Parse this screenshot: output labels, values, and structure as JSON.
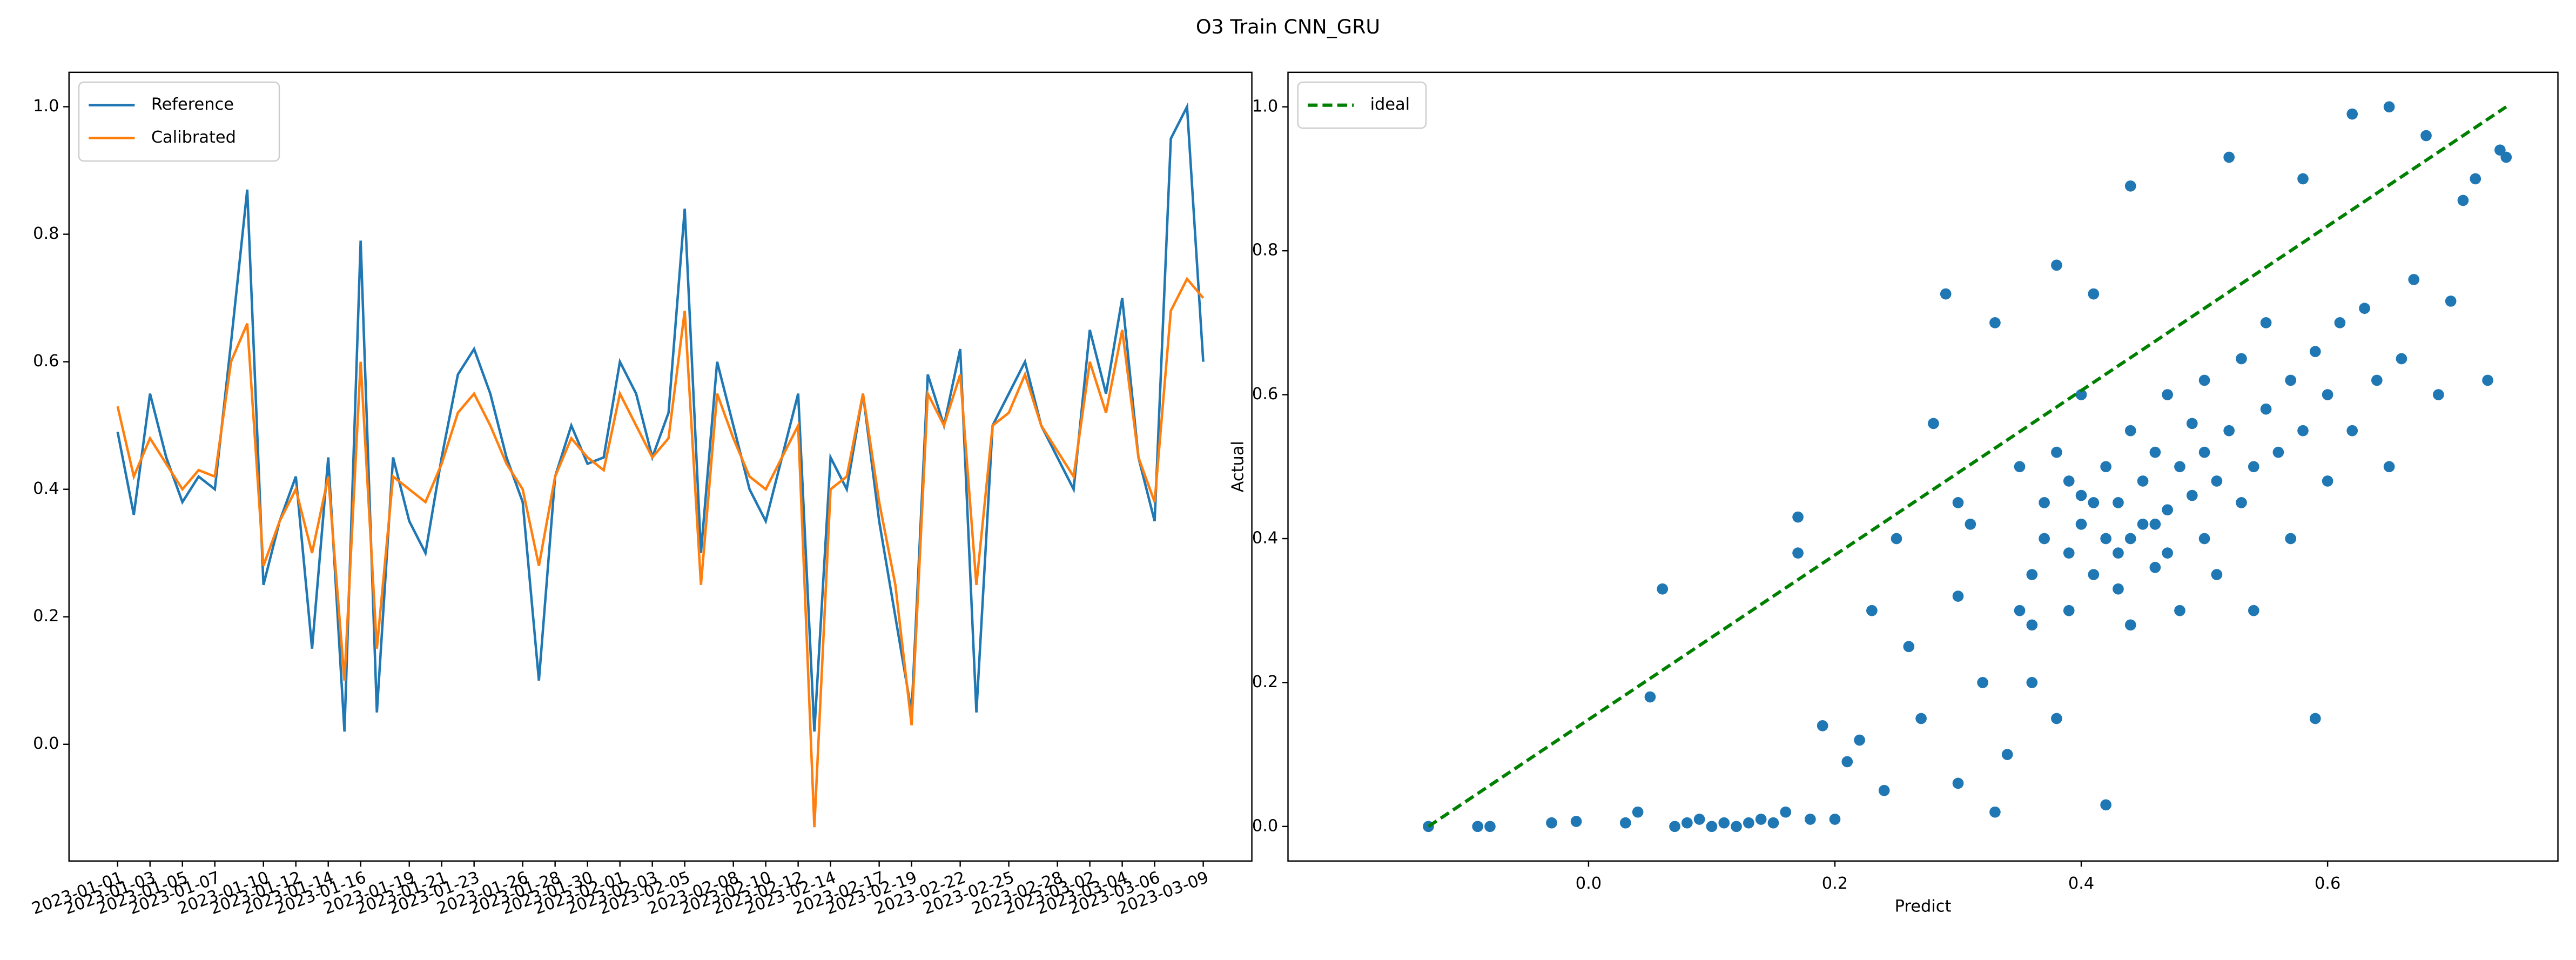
{
  "title": "O3 Train CNN_GRU",
  "chart_data": [
    {
      "type": "line",
      "x": [
        "2023-01-01",
        "2023-01-02",
        "2023-01-03",
        "2023-01-04",
        "2023-01-05",
        "2023-01-06",
        "2023-01-07",
        "2023-01-08",
        "2023-01-09",
        "2023-01-10",
        "2023-01-11",
        "2023-01-12",
        "2023-01-13",
        "2023-01-14",
        "2023-01-15",
        "2023-01-16",
        "2023-01-17",
        "2023-01-18",
        "2023-01-19",
        "2023-01-20",
        "2023-01-21",
        "2023-01-22",
        "2023-01-23",
        "2023-01-24",
        "2023-01-25",
        "2023-01-26",
        "2023-01-27",
        "2023-01-28",
        "2023-01-29",
        "2023-01-30",
        "2023-01-31",
        "2023-02-01",
        "2023-02-02",
        "2023-02-03",
        "2023-02-04",
        "2023-02-05",
        "2023-02-06",
        "2023-02-07",
        "2023-02-08",
        "2023-02-09",
        "2023-02-10",
        "2023-02-11",
        "2023-02-12",
        "2023-02-13",
        "2023-02-14",
        "2023-02-15",
        "2023-02-16",
        "2023-02-17",
        "2023-02-18",
        "2023-02-19",
        "2023-02-20",
        "2023-02-21",
        "2023-02-22",
        "2023-02-23",
        "2023-02-24",
        "2023-02-25",
        "2023-02-26",
        "2023-02-27",
        "2023-02-28",
        "2023-03-01",
        "2023-03-02",
        "2023-03-03",
        "2023-03-04",
        "2023-03-05",
        "2023-03-06",
        "2023-03-07",
        "2023-03-08",
        "2023-03-09"
      ],
      "series": [
        {
          "name": "Reference",
          "color": "#1f77b4",
          "values": [
            0.49,
            0.36,
            0.55,
            0.45,
            0.38,
            0.42,
            0.4,
            0.63,
            0.87,
            0.25,
            0.35,
            0.42,
            0.15,
            0.45,
            0.02,
            0.79,
            0.05,
            0.45,
            0.35,
            0.3,
            0.45,
            0.58,
            0.62,
            0.55,
            0.45,
            0.38,
            0.1,
            0.42,
            0.5,
            0.44,
            0.45,
            0.6,
            0.55,
            0.45,
            0.52,
            0.84,
            0.3,
            0.6,
            0.5,
            0.4,
            0.35,
            0.45,
            0.55,
            0.02,
            0.45,
            0.4,
            0.55,
            0.35,
            0.2,
            0.05,
            0.58,
            0.5,
            0.62,
            0.05,
            0.5,
            0.55,
            0.6,
            0.5,
            0.45,
            0.4,
            0.65,
            0.55,
            0.7,
            0.45,
            0.35,
            0.95,
            1.0,
            0.6
          ]
        },
        {
          "name": "Calibrated",
          "color": "#ff7f0e",
          "values": [
            0.53,
            0.42,
            0.48,
            0.44,
            0.4,
            0.43,
            0.42,
            0.6,
            0.66,
            0.28,
            0.35,
            0.4,
            0.3,
            0.42,
            0.1,
            0.6,
            0.15,
            0.42,
            0.4,
            0.38,
            0.44,
            0.52,
            0.55,
            0.5,
            0.44,
            0.4,
            0.28,
            0.42,
            0.48,
            0.45,
            0.43,
            0.55,
            0.5,
            0.45,
            0.48,
            0.68,
            0.25,
            0.55,
            0.48,
            0.42,
            0.4,
            0.45,
            0.5,
            -0.13,
            0.4,
            0.42,
            0.55,
            0.38,
            0.25,
            0.03,
            0.55,
            0.5,
            0.58,
            0.25,
            0.5,
            0.52,
            0.58,
            0.5,
            0.46,
            0.42,
            0.6,
            0.52,
            0.65,
            0.45,
            0.38,
            0.68,
            0.73,
            0.7
          ]
        }
      ],
      "xlim": [
        "2022-12-29",
        "2023-03-12"
      ],
      "xticks": [
        "2023-01-01",
        "2023-01-03",
        "2023-01-05",
        "2023-01-07",
        "2023-01-10",
        "2023-01-12",
        "2023-01-14",
        "2023-01-16",
        "2023-01-19",
        "2023-01-21",
        "2023-01-23",
        "2023-01-26",
        "2023-01-28",
        "2023-01-30",
        "2023-02-01",
        "2023-02-03",
        "2023-02-05",
        "2023-02-08",
        "2023-02-10",
        "2023-02-12",
        "2023-02-14",
        "2023-02-17",
        "2023-02-19",
        "2023-02-22",
        "2023-02-25",
        "2023-02-28",
        "2023-03-02",
        "2023-03-04",
        "2023-03-06",
        "2023-03-09"
      ],
      "ylim": [
        -0.183,
        1.054
      ],
      "yticks": [
        {
          "value": 0,
          "label": "0.0"
        },
        {
          "value": 0.2,
          "label": "0.2"
        },
        {
          "value": 0.4,
          "label": "0.4"
        },
        {
          "value": 0.6,
          "label": "0.6"
        },
        {
          "value": 0.8,
          "label": "0.8"
        },
        {
          "value": 1,
          "label": "1.0"
        }
      ],
      "grid": false,
      "legend": "upper left"
    },
    {
      "type": "scatter",
      "xlabel": "Predict",
      "ylabel": "Actual",
      "points": {
        "color": "#1f77b4",
        "x": [
          -0.13,
          -0.09,
          -0.08,
          -0.03,
          -0.01,
          0.03,
          0.04,
          0.05,
          0.06,
          0.07,
          0.08,
          0.09,
          0.1,
          0.11,
          0.12,
          0.13,
          0.14,
          0.15,
          0.16,
          0.17,
          0.17,
          0.18,
          0.19,
          0.2,
          0.21,
          0.22,
          0.23,
          0.24,
          0.25,
          0.26,
          0.27,
          0.28,
          0.29,
          0.3,
          0.3,
          0.31,
          0.32,
          0.33,
          0.33,
          0.34,
          0.35,
          0.35,
          0.36,
          0.36,
          0.37,
          0.37,
          0.38,
          0.38,
          0.39,
          0.39,
          0.4,
          0.4,
          0.4,
          0.41,
          0.41,
          0.42,
          0.42,
          0.42,
          0.43,
          0.43,
          0.44,
          0.44,
          0.44,
          0.45,
          0.45,
          0.46,
          0.46,
          0.47,
          0.47,
          0.48,
          0.48,
          0.49,
          0.49,
          0.5,
          0.5,
          0.51,
          0.51,
          0.52,
          0.52,
          0.53,
          0.53,
          0.54,
          0.54,
          0.55,
          0.55,
          0.56,
          0.57,
          0.57,
          0.58,
          0.58,
          0.59,
          0.59,
          0.6,
          0.6,
          0.61,
          0.62,
          0.62,
          0.63,
          0.64,
          0.65,
          0.65,
          0.66,
          0.67,
          0.68,
          0.69,
          0.7,
          0.71,
          0.72,
          0.73,
          0.74,
          0.745,
          0.3,
          0.38,
          0.43,
          0.46,
          0.41,
          0.44,
          0.47,
          0.39,
          0.5,
          0.36
        ],
        "y": [
          0,
          0,
          0,
          0.005,
          0.007,
          0.005,
          0.02,
          0.18,
          0.33,
          0,
          0.005,
          0.01,
          0,
          0.005,
          0,
          0.005,
          0.01,
          0.005,
          0.02,
          0.43,
          0.38,
          0.01,
          0.14,
          0.01,
          0.09,
          0.12,
          0.3,
          0.05,
          0.4,
          0.25,
          0.15,
          0.56,
          0.74,
          0.32,
          0.06,
          0.42,
          0.2,
          0.02,
          0.7,
          0.1,
          0.5,
          0.3,
          0.35,
          0.2,
          0.4,
          0.45,
          0.78,
          0.15,
          0.38,
          0.3,
          0.42,
          0.46,
          0.6,
          0.74,
          0.35,
          0.4,
          0.5,
          0.03,
          0.45,
          0.38,
          0.89,
          0.55,
          0.28,
          0.42,
          0.48,
          0.52,
          0.36,
          0.44,
          0.6,
          0.5,
          0.3,
          0.46,
          0.56,
          0.4,
          0.62,
          0.48,
          0.35,
          0.55,
          0.93,
          0.45,
          0.65,
          0.5,
          0.3,
          0.58,
          0.7,
          0.52,
          0.62,
          0.4,
          0.9,
          0.55,
          0.15,
          0.66,
          0.6,
          0.48,
          0.7,
          0.99,
          0.55,
          0.72,
          0.62,
          1.0,
          0.5,
          0.65,
          0.76,
          0.96,
          0.6,
          0.73,
          0.87,
          0.9,
          0.62,
          0.94,
          0.93,
          0.45,
          0.52,
          0.33,
          0.42,
          0.45,
          0.4,
          0.38,
          0.48,
          0.52,
          0.28
        ]
      },
      "lines": [
        {
          "name": "ideal",
          "color": "green",
          "style": "dashed",
          "x": [
            -0.13,
            0.745
          ],
          "y": [
            0,
            1.0
          ]
        }
      ],
      "xlim": [
        -0.244,
        0.787
      ],
      "xticks": [
        {
          "value": 0,
          "label": "0.0"
        },
        {
          "value": 0.2,
          "label": "0.2"
        },
        {
          "value": 0.4,
          "label": "0.4"
        },
        {
          "value": 0.6,
          "label": "0.6"
        }
      ],
      "ylim": [
        -0.048,
        1.048
      ],
      "yticks": [
        {
          "value": 0,
          "label": "0.0"
        },
        {
          "value": 0.2,
          "label": "0.2"
        },
        {
          "value": 0.4,
          "label": "0.4"
        },
        {
          "value": 0.6,
          "label": "0.6"
        },
        {
          "value": 0.8,
          "label": "0.8"
        },
        {
          "value": 1,
          "label": "1.0"
        }
      ],
      "grid": false,
      "legend": "upper left"
    }
  ]
}
